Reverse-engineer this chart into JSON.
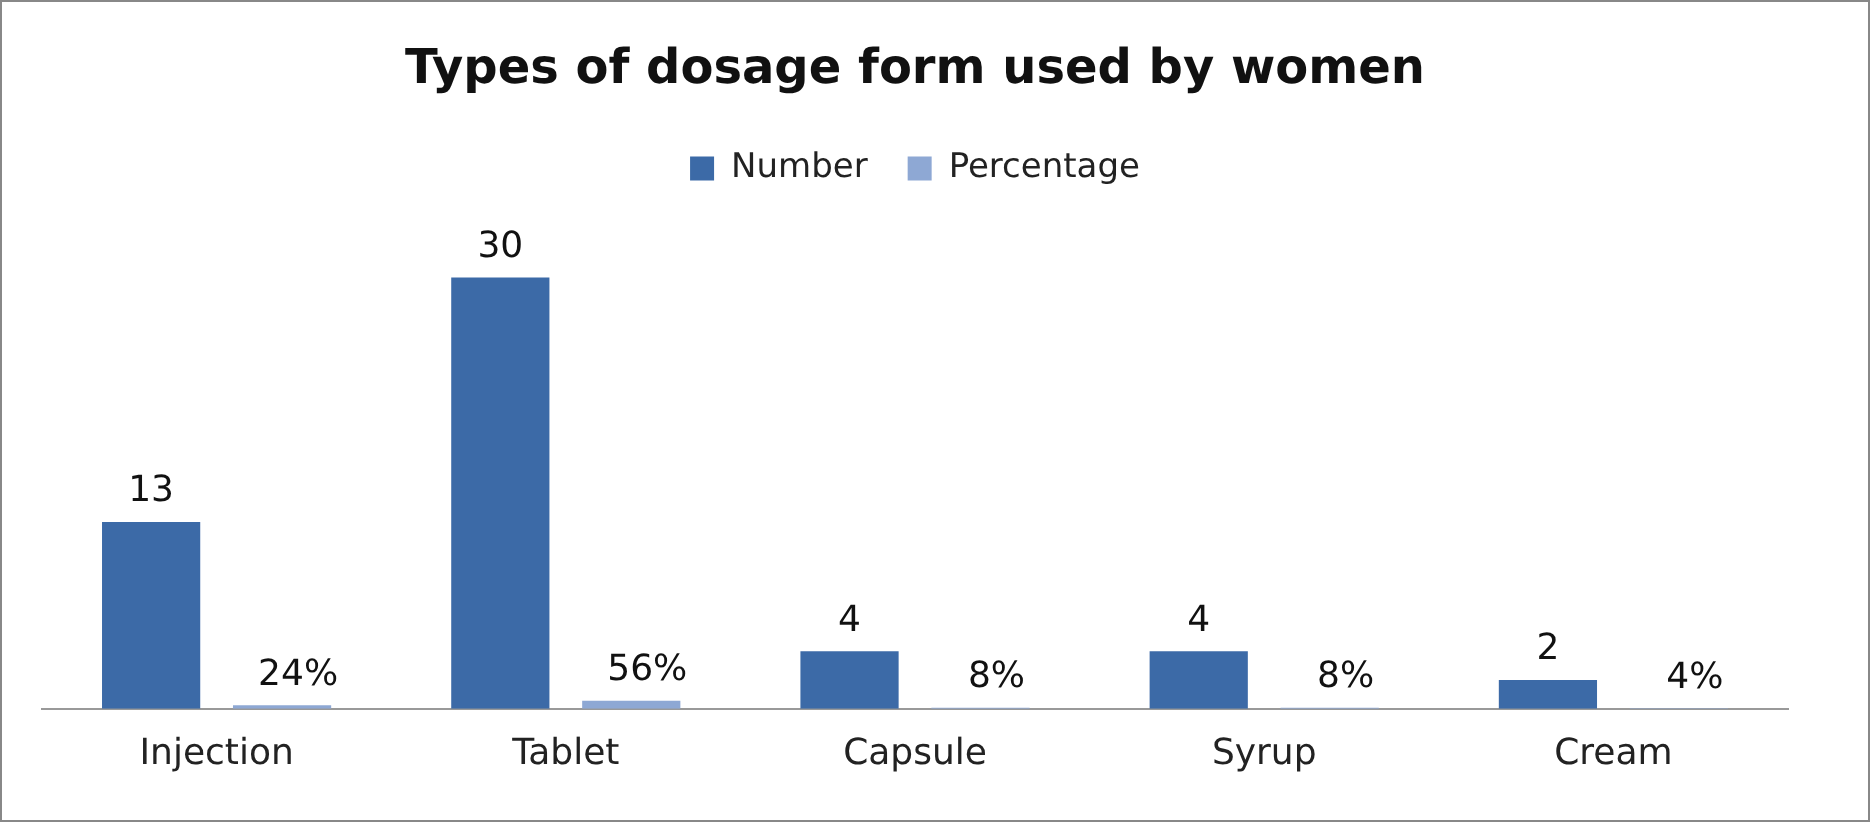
{
  "chart_data": {
    "type": "bar",
    "title": "Types of dosage form used by women",
    "categories": [
      "Injection",
      "Tablet",
      "Capsule",
      "Syrup",
      "Cream"
    ],
    "series": [
      {
        "name": "Number",
        "color": "#3c6aa7",
        "values": [
          13,
          30,
          4,
          4,
          2
        ],
        "value_labels": [
          "13",
          "30",
          "4",
          "4",
          "2"
        ]
      },
      {
        "name": "Percentage",
        "color": "#8ea8d4",
        "values": [
          0.24,
          0.56,
          0.08,
          0.08,
          0.04
        ],
        "value_labels": [
          "24%",
          "56%",
          "8%",
          "8%",
          "4%"
        ]
      }
    ],
    "legend": "top",
    "grid": false,
    "tick_labels": "x"
  }
}
